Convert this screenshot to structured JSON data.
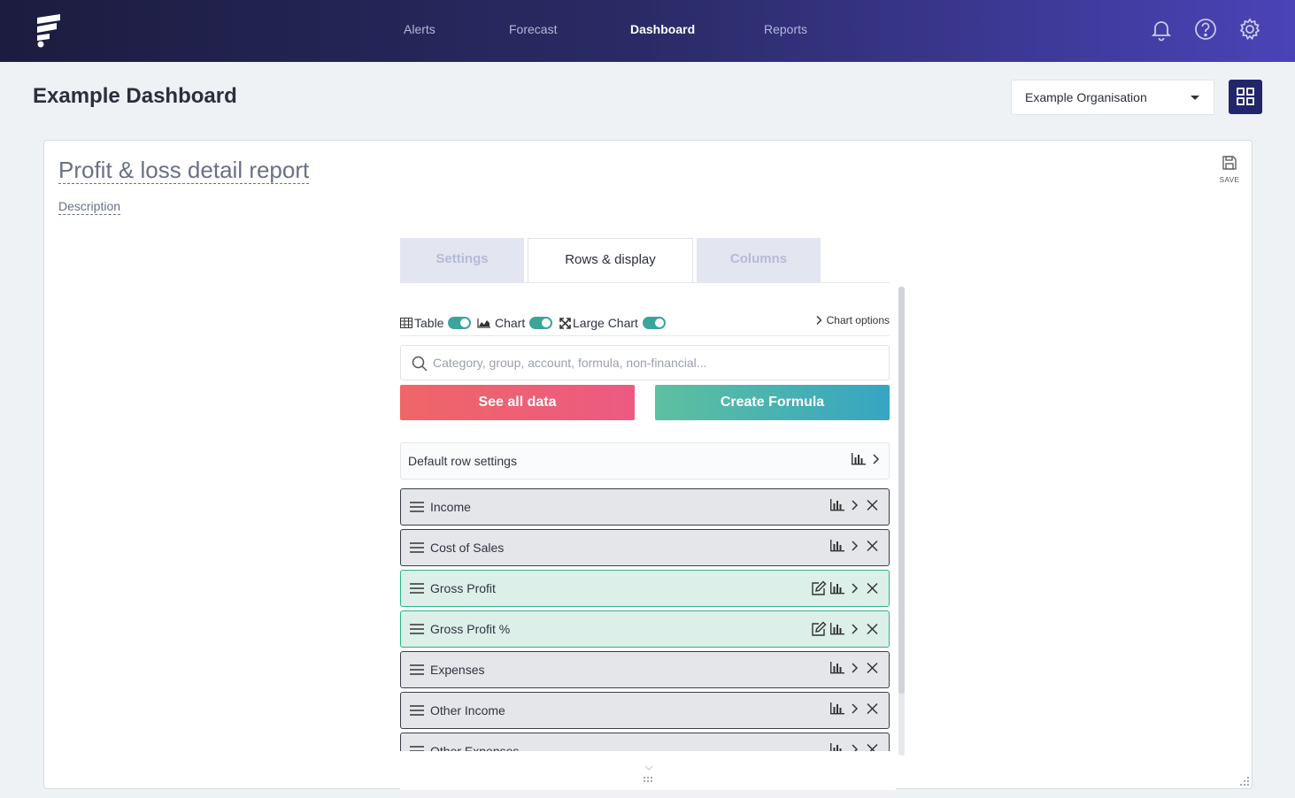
{
  "nav": {
    "items": [
      {
        "label": "Alerts",
        "active": false
      },
      {
        "label": "Forecast",
        "active": false
      },
      {
        "label": "Dashboard",
        "active": true
      },
      {
        "label": "Reports",
        "active": false
      }
    ],
    "icons": [
      "bell-icon",
      "help-icon",
      "gear-icon"
    ]
  },
  "header": {
    "title": "Example Dashboard",
    "organisation": "Example Organisation"
  },
  "report": {
    "title": "Profit & loss detail report",
    "description": "Description",
    "save_label": "Save",
    "tabs": [
      {
        "label": "Settings",
        "active": false
      },
      {
        "label": "Rows & display",
        "active": true
      },
      {
        "label": "Columns",
        "active": false
      }
    ],
    "toggles": [
      {
        "label": "Table",
        "icon": "table-icon",
        "on": true
      },
      {
        "label": "Chart",
        "icon": "area-chart-icon",
        "on": true
      },
      {
        "label": "Large Chart",
        "icon": "expand-icon",
        "on": true
      }
    ],
    "chart_options_label": "Chart options",
    "search_placeholder": "Category, group, account, formula, non-financial...",
    "see_all_label": "See all data",
    "create_formula_label": "Create Formula",
    "default_row_label": "Default row settings",
    "rows": [
      {
        "label": "Income",
        "formula": false
      },
      {
        "label": "Cost of Sales",
        "formula": false
      },
      {
        "label": "Gross Profit",
        "formula": true
      },
      {
        "label": "Gross Profit %",
        "formula": true
      },
      {
        "label": "Expenses",
        "formula": false
      },
      {
        "label": "Other Income",
        "formula": false
      },
      {
        "label": "Other Expenses",
        "formula": false
      }
    ]
  },
  "colors": {
    "nav_start": "#1c1c3f",
    "nav_end": "#4a43b8",
    "toggle_on": "#3aa69a",
    "see_all": "#ef6667",
    "create_formula": "#5ec0a0",
    "formula_row": "#dcefe9",
    "formula_border": "#2eb482"
  }
}
